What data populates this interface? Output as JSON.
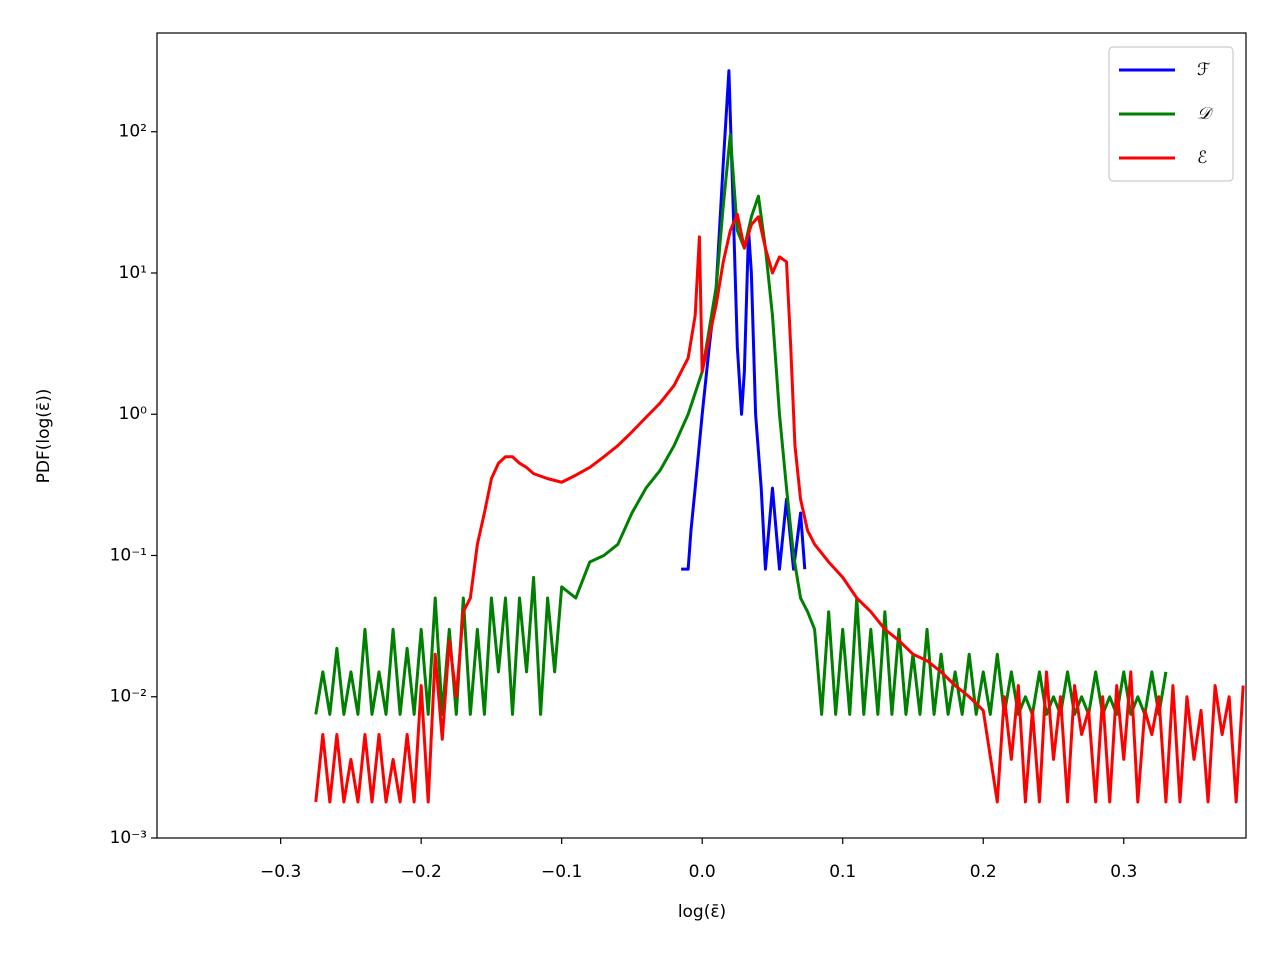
{
  "chart_data": {
    "type": "line",
    "x_label": "log(ε̄)",
    "y_label": "PDF(log(ε̄))",
    "xlim": [
      -0.388,
      0.387
    ],
    "ylim": [
      0.001,
      500
    ],
    "y_scale": "log",
    "legend": "upper right",
    "xticks": [
      {
        "value": -0.3,
        "label": "−0.3"
      },
      {
        "value": -0.2,
        "label": "−0.2"
      },
      {
        "value": -0.1,
        "label": "−0.1"
      },
      {
        "value": 0,
        "label": "0.0"
      },
      0.1,
      0.2,
      0.3
    ],
    "yticks": [
      {
        "value": 0.001,
        "label": "10⁻³"
      },
      {
        "value": 0.01,
        "label": "10⁻²"
      },
      {
        "value": 0.1,
        "label": "10⁻¹"
      },
      {
        "value": 1,
        "label": "10⁰"
      },
      {
        "value": 10,
        "label": "10¹"
      },
      {
        "value": 100,
        "label": "10²"
      }
    ],
    "series": [
      {
        "name": "ℱ",
        "color": "#0000ff",
        "x": [
          -0.015,
          -0.01,
          -0.008,
          -0.005,
          0,
          0.005,
          0.01,
          0.015,
          0.019,
          0.022,
          0.025,
          0.028,
          0.03,
          0.033,
          0.035,
          0.038,
          0.042,
          0.045,
          0.05,
          0.055,
          0.06,
          0.065,
          0.07,
          0.073
        ],
        "values": [
          0.08,
          0.08,
          0.15,
          0.3,
          1,
          3,
          8,
          60,
          270,
          30,
          3,
          1,
          2,
          20,
          10,
          1,
          0.3,
          0.08,
          0.3,
          0.08,
          0.25,
          0.08,
          0.2,
          0.08
        ]
      },
      {
        "name": "𝒟",
        "color": "#008000",
        "x": [
          -0.275,
          -0.27,
          -0.265,
          -0.26,
          -0.255,
          -0.25,
          -0.245,
          -0.24,
          -0.235,
          -0.23,
          -0.225,
          -0.22,
          -0.215,
          -0.21,
          -0.205,
          -0.2,
          -0.195,
          -0.19,
          -0.185,
          -0.18,
          -0.175,
          -0.17,
          -0.165,
          -0.16,
          -0.155,
          -0.15,
          -0.145,
          -0.14,
          -0.135,
          -0.13,
          -0.125,
          -0.12,
          -0.115,
          -0.11,
          -0.105,
          -0.1,
          -0.09,
          -0.08,
          -0.07,
          -0.06,
          -0.05,
          -0.04,
          -0.03,
          -0.02,
          -0.01,
          0,
          0.005,
          0.01,
          0.015,
          0.02,
          0.025,
          0.03,
          0.035,
          0.04,
          0.045,
          0.05,
          0.055,
          0.06,
          0.065,
          0.07,
          0.075,
          0.08,
          0.085,
          0.09,
          0.095,
          0.1,
          0.105,
          0.11,
          0.115,
          0.12,
          0.125,
          0.13,
          0.135,
          0.14,
          0.145,
          0.15,
          0.155,
          0.16,
          0.165,
          0.17,
          0.175,
          0.18,
          0.185,
          0.19,
          0.195,
          0.2,
          0.205,
          0.21,
          0.215,
          0.22,
          0.225,
          0.23,
          0.235,
          0.24,
          0.245,
          0.25,
          0.255,
          0.26,
          0.265,
          0.27,
          0.275,
          0.28,
          0.285,
          0.29,
          0.295,
          0.3,
          0.305,
          0.31,
          0.315,
          0.32,
          0.325,
          0.33
        ],
        "values": [
          0.0075,
          0.015,
          0.0075,
          0.022,
          0.0075,
          0.015,
          0.0075,
          0.03,
          0.0075,
          0.015,
          0.0075,
          0.03,
          0.0075,
          0.022,
          0.0075,
          0.03,
          0.0075,
          0.05,
          0.0075,
          0.03,
          0.0075,
          0.05,
          0.0075,
          0.03,
          0.0075,
          0.05,
          0.015,
          0.05,
          0.0075,
          0.05,
          0.015,
          0.07,
          0.0075,
          0.05,
          0.015,
          0.06,
          0.05,
          0.09,
          0.1,
          0.12,
          0.2,
          0.3,
          0.4,
          0.6,
          1,
          2,
          4,
          8,
          30,
          95,
          20,
          15,
          25,
          35,
          15,
          5,
          1,
          0.3,
          0.1,
          0.05,
          0.04,
          0.03,
          0.0075,
          0.04,
          0.0075,
          0.03,
          0.0075,
          0.05,
          0.0075,
          0.03,
          0.0075,
          0.04,
          0.0075,
          0.03,
          0.0075,
          0.02,
          0.0075,
          0.03,
          0.0075,
          0.02,
          0.0075,
          0.015,
          0.0075,
          0.02,
          0.0075,
          0.015,
          0.0075,
          0.02,
          0.0075,
          0.015,
          0.0075,
          0.01,
          0.0075,
          0.015,
          0.0075,
          0.01,
          0.0075,
          0.015,
          0.0075,
          0.01,
          0.0075,
          0.015,
          0.0075,
          0.01,
          0.0075,
          0.015,
          0.0075,
          0.01,
          0.0075,
          0.015,
          0.0075,
          0.015
        ]
      },
      {
        "name": "ℰ",
        "color": "#ff0000",
        "x": [
          -0.275,
          -0.27,
          -0.265,
          -0.26,
          -0.255,
          -0.25,
          -0.245,
          -0.24,
          -0.235,
          -0.23,
          -0.225,
          -0.22,
          -0.215,
          -0.21,
          -0.205,
          -0.2,
          -0.195,
          -0.19,
          -0.185,
          -0.18,
          -0.175,
          -0.17,
          -0.165,
          -0.16,
          -0.155,
          -0.15,
          -0.145,
          -0.14,
          -0.135,
          -0.13,
          -0.125,
          -0.12,
          -0.11,
          -0.1,
          -0.09,
          -0.08,
          -0.07,
          -0.06,
          -0.05,
          -0.04,
          -0.03,
          -0.02,
          -0.01,
          -0.005,
          -0.002,
          0,
          0.005,
          0.01,
          0.015,
          0.02,
          0.025,
          0.03,
          0.035,
          0.04,
          0.045,
          0.05,
          0.055,
          0.06,
          0.063,
          0.066,
          0.07,
          0.075,
          0.08,
          0.09,
          0.1,
          0.11,
          0.12,
          0.13,
          0.14,
          0.15,
          0.16,
          0.17,
          0.18,
          0.19,
          0.2,
          0.21,
          0.215,
          0.22,
          0.225,
          0.23,
          0.235,
          0.24,
          0.245,
          0.25,
          0.255,
          0.26,
          0.265,
          0.27,
          0.275,
          0.28,
          0.285,
          0.29,
          0.295,
          0.3,
          0.305,
          0.31,
          0.315,
          0.32,
          0.325,
          0.33,
          0.335,
          0.34,
          0.345,
          0.35,
          0.355,
          0.36,
          0.365,
          0.37,
          0.375,
          0.38,
          0.385
        ],
        "values": [
          0.0018,
          0.0054,
          0.0018,
          0.0054,
          0.0018,
          0.0036,
          0.0018,
          0.0054,
          0.0018,
          0.0054,
          0.0018,
          0.0036,
          0.0018,
          0.0054,
          0.0018,
          0.012,
          0.0018,
          0.02,
          0.005,
          0.025,
          0.01,
          0.04,
          0.05,
          0.12,
          0.2,
          0.35,
          0.45,
          0.5,
          0.5,
          0.45,
          0.42,
          0.38,
          0.35,
          0.33,
          0.37,
          0.42,
          0.5,
          0.6,
          0.75,
          0.95,
          1.2,
          1.6,
          2.5,
          5,
          18,
          2,
          3.5,
          6,
          12,
          20,
          26,
          15,
          22,
          25,
          15,
          10,
          13,
          12,
          3,
          0.6,
          0.25,
          0.15,
          0.12,
          0.09,
          0.07,
          0.05,
          0.04,
          0.03,
          0.025,
          0.02,
          0.018,
          0.015,
          0.012,
          0.01,
          0.008,
          0.0018,
          0.01,
          0.0036,
          0.012,
          0.0018,
          0.008,
          0.0018,
          0.015,
          0.0036,
          0.01,
          0.0018,
          0.012,
          0.0054,
          0.008,
          0.0018,
          0.01,
          0.0018,
          0.012,
          0.0036,
          0.015,
          0.0018,
          0.008,
          0.0054,
          0.01,
          0.0018,
          0.012,
          0.0018,
          0.01,
          0.0036,
          0.008,
          0.0018,
          0.012,
          0.0054,
          0.01,
          0.0018,
          0.012
        ]
      }
    ]
  }
}
